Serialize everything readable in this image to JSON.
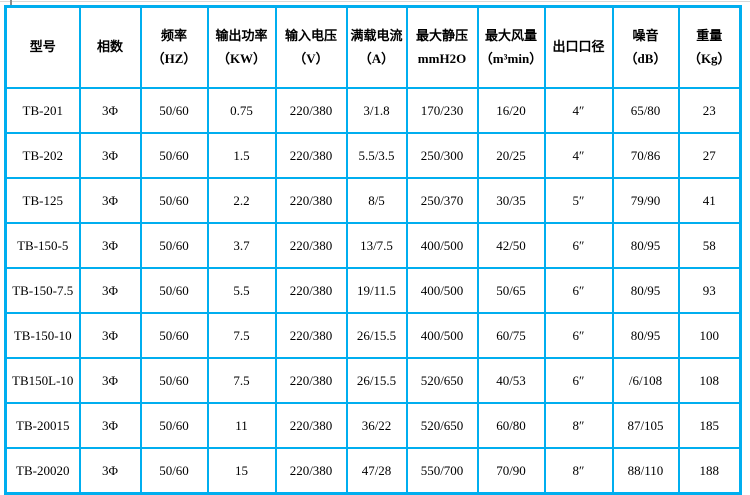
{
  "page": {
    "accent_border_color": "#00AEEF",
    "background_color": "#ffffff",
    "top_divider_color": "#d9d9d9"
  },
  "table": {
    "columns": [
      {
        "key": "model",
        "line1": "型号",
        "line2": ""
      },
      {
        "key": "phases",
        "line1": "相数",
        "line2": ""
      },
      {
        "key": "frequency",
        "line1": "频率",
        "line2": "（HZ）"
      },
      {
        "key": "output-power",
        "line1": "输出功率",
        "line2": "（KW）"
      },
      {
        "key": "input-voltage",
        "line1": "输入电压",
        "line2": "（V）"
      },
      {
        "key": "full-load-current",
        "line1": "满载电流",
        "line2": "（A）"
      },
      {
        "key": "max-static-pressure",
        "line1": "最大静压",
        "line2": "mmH2O"
      },
      {
        "key": "max-air-volume",
        "line1": "最大风量",
        "line2": "（m³min）"
      },
      {
        "key": "outlet-diameter",
        "line1": "出口口径",
        "line2": ""
      },
      {
        "key": "noise",
        "line1": "噪音",
        "line2": "（dB）"
      },
      {
        "key": "weight",
        "line1": "重量",
        "line2": "（Kg）"
      }
    ],
    "rows": [
      [
        "TB-201",
        "3Φ",
        "50/60",
        "0.75",
        "220/380",
        "3/1.8",
        "170/230",
        "16/20",
        "4″",
        "65/80",
        "23"
      ],
      [
        "TB-202",
        "3Φ",
        "50/60",
        "1.5",
        "220/380",
        "5.5/3.5",
        "250/300",
        "20/25",
        "4″",
        "70/86",
        "27"
      ],
      [
        "TB-125",
        "3Φ",
        "50/60",
        "2.2",
        "220/380",
        "8/5",
        "250/370",
        "30/35",
        "5″",
        "79/90",
        "41"
      ],
      [
        "TB-150-5",
        "3Φ",
        "50/60",
        "3.7",
        "220/380",
        "13/7.5",
        "400/500",
        "42/50",
        "6″",
        "80/95",
        "58"
      ],
      [
        "TB-150-7.5",
        "3Φ",
        "50/60",
        "5.5",
        "220/380",
        "19/11.5",
        "400/500",
        "50/65",
        "6″",
        "80/95",
        "93"
      ],
      [
        "TB-150-10",
        "3Φ",
        "50/60",
        "7.5",
        "220/380",
        "26/15.5",
        "400/500",
        "60/75",
        "6″",
        "80/95",
        "100"
      ],
      [
        "TB150L-10",
        "3Φ",
        "50/60",
        "7.5",
        "220/380",
        "26/15.5",
        "520/650",
        "40/53",
        "6″",
        "/6/108",
        "108"
      ],
      [
        "TB-20015",
        "3Φ",
        "50/60",
        "11",
        "220/380",
        "36/22",
        "520/650",
        "60/80",
        "8″",
        "87/105",
        "185"
      ],
      [
        "TB-20020",
        "3Φ",
        "50/60",
        "15",
        "220/380",
        "47/28",
        "550/700",
        "70/90",
        "8″",
        "88/110",
        "188"
      ]
    ]
  }
}
